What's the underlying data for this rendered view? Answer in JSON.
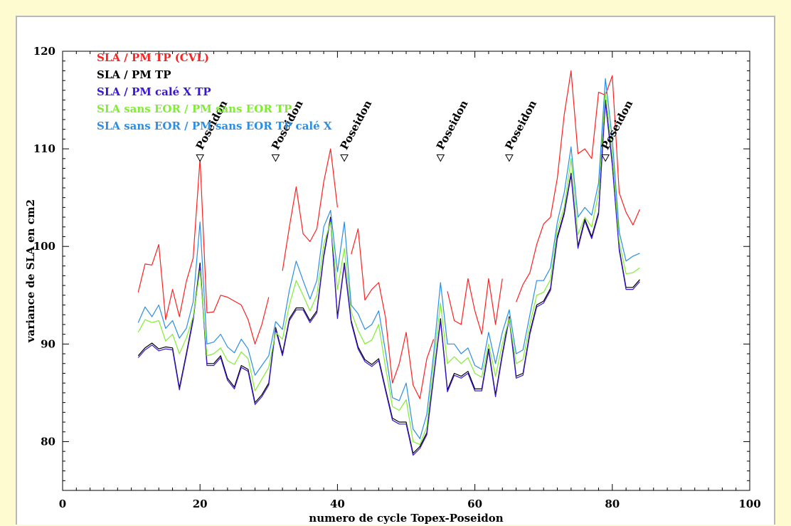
{
  "chart_data": {
    "type": "line",
    "title": "",
    "xlabel": "numero de cycle Topex-Poseidon",
    "ylabel": "variance de SLA en cm2",
    "xlim": [
      0,
      100
    ],
    "ylim": [
      75,
      120
    ],
    "x_ticks": [
      0,
      20,
      40,
      60,
      80,
      100
    ],
    "y_ticks": [
      80,
      90,
      100,
      110,
      120
    ],
    "grid": false,
    "legend_position": "top-left",
    "x": [
      11,
      12,
      13,
      14,
      15,
      16,
      17,
      18,
      19,
      20,
      21,
      22,
      23,
      24,
      25,
      26,
      27,
      28,
      29,
      30,
      31,
      32,
      33,
      34,
      35,
      36,
      37,
      38,
      39,
      40,
      41,
      42,
      43,
      44,
      45,
      46,
      47,
      48,
      49,
      50,
      51,
      52,
      53,
      54,
      55,
      56,
      57,
      58,
      59,
      60,
      61,
      62,
      63,
      64,
      65,
      66,
      67,
      68,
      69,
      70,
      71,
      72,
      73,
      74,
      75,
      76,
      77,
      78,
      79,
      80,
      81,
      82,
      83,
      84
    ],
    "series": [
      {
        "name": "SLA / PM TP (CVL)",
        "color": "#ff2020",
        "values": [
          95.3,
          98.2,
          98.1,
          100.2,
          92.5,
          95.6,
          92.8,
          96.4,
          98.8,
          109.0,
          93.2,
          93.3,
          95.0,
          94.8,
          94.4,
          94.0,
          92.5,
          90.0,
          92.0,
          94.8,
          null,
          97.5,
          102.0,
          106.1,
          101.3,
          100.5,
          101.8,
          106.6,
          110.0,
          104.0,
          null,
          99.2,
          101.8,
          94.5,
          95.6,
          96.3,
          92.7,
          86.0,
          88.0,
          91.2,
          85.8,
          84.4,
          88.5,
          90.5,
          null,
          95.4,
          92.4,
          92.0,
          96.7,
          93.4,
          91.0,
          96.7,
          92.0,
          96.7,
          null,
          94.3,
          96.1,
          97.3,
          100.2,
          102.3,
          103.0,
          107.0,
          113.5,
          118.0,
          109.5,
          110.0,
          109.0,
          115.8,
          115.5,
          117.5,
          105.5,
          103.5,
          102.2,
          103.8
        ]
      },
      {
        "name": "SLA / PM TP",
        "color": "#000000",
        "values": [
          88.8,
          89.6,
          90.1,
          89.5,
          89.7,
          89.6,
          85.5,
          89.0,
          92.6,
          98.3,
          88.0,
          88.0,
          88.8,
          86.5,
          85.6,
          87.8,
          87.4,
          84.0,
          84.8,
          86.0,
          91.7,
          89.0,
          92.6,
          93.7,
          93.7,
          92.4,
          93.4,
          99.1,
          103.0,
          92.8,
          98.3,
          92.4,
          89.7,
          88.4,
          87.9,
          88.5,
          85.4,
          82.4,
          82.0,
          82.0,
          78.8,
          79.5,
          80.9,
          86.7,
          92.6,
          85.3,
          87.0,
          86.7,
          87.2,
          85.4,
          85.4,
          89.5,
          84.8,
          89.0,
          92.8,
          86.7,
          87.0,
          91.2,
          94.0,
          94.4,
          95.7,
          101.0,
          103.5,
          107.5,
          100.0,
          102.8,
          101.0,
          103.5,
          115.0,
          108.5,
          99.8,
          95.8,
          95.8,
          96.6
        ]
      },
      {
        "name": "SLA / PM calé X TP",
        "color": "#3a14d8",
        "values": [
          88.6,
          89.4,
          89.9,
          89.3,
          89.5,
          89.4,
          85.3,
          88.8,
          92.4,
          98.0,
          87.8,
          87.8,
          88.6,
          86.3,
          85.4,
          87.6,
          87.2,
          83.8,
          84.6,
          85.8,
          91.5,
          88.8,
          92.4,
          93.5,
          93.5,
          92.2,
          93.2,
          98.9,
          102.8,
          92.6,
          98.1,
          92.2,
          89.5,
          88.2,
          87.7,
          88.3,
          85.2,
          82.2,
          81.8,
          81.8,
          78.6,
          79.3,
          80.7,
          86.5,
          92.4,
          85.1,
          86.8,
          86.5,
          87.0,
          85.2,
          85.2,
          89.3,
          84.6,
          88.8,
          92.6,
          86.5,
          86.8,
          91.0,
          93.8,
          94.2,
          95.5,
          100.8,
          103.3,
          107.3,
          99.8,
          102.6,
          100.8,
          103.3,
          114.8,
          108.3,
          99.6,
          95.6,
          95.6,
          96.4
        ]
      },
      {
        "name": "SLA sans EOR / PM sans EOR TP",
        "color": "#80ee30",
        "values": [
          91.2,
          92.5,
          92.2,
          92.4,
          90.3,
          91.0,
          89.0,
          90.6,
          92.8,
          97.5,
          88.8,
          89.0,
          89.6,
          88.3,
          87.9,
          89.2,
          88.5,
          85.2,
          86.4,
          87.6,
          91.2,
          90.5,
          94.0,
          96.5,
          95.0,
          93.4,
          95.0,
          100.2,
          102.5,
          95.6,
          99.8,
          93.3,
          91.4,
          90.0,
          90.4,
          92.0,
          87.6,
          83.6,
          83.2,
          84.3,
          80.0,
          79.7,
          81.5,
          88.0,
          94.2,
          88.0,
          88.7,
          88.0,
          88.6,
          87.0,
          86.6,
          90.0,
          86.7,
          90.0,
          92.6,
          88.0,
          88.4,
          92.0,
          95.0,
          95.3,
          96.6,
          101.8,
          104.0,
          109.0,
          101.2,
          103.0,
          102.0,
          105.5,
          115.8,
          109.5,
          100.5,
          97.2,
          97.3,
          97.8
        ]
      },
      {
        "name": "SLA sans EOR / PM sans EOR TP calé X",
        "color": "#2a8ee8",
        "values": [
          92.2,
          93.8,
          92.8,
          94.0,
          91.6,
          92.4,
          90.6,
          91.6,
          94.3,
          102.5,
          90.0,
          90.2,
          91.0,
          89.7,
          89.1,
          90.5,
          89.5,
          86.8,
          87.8,
          88.8,
          92.3,
          91.5,
          95.5,
          98.5,
          96.5,
          94.6,
          96.5,
          102.0,
          103.7,
          97.4,
          102.5,
          94.0,
          93.1,
          91.5,
          92.0,
          93.4,
          89.2,
          84.5,
          84.2,
          86.0,
          81.3,
          80.3,
          82.8,
          89.0,
          96.3,
          90.0,
          90.0,
          89.0,
          89.6,
          87.8,
          87.4,
          91.2,
          88.0,
          91.2,
          93.5,
          89.0,
          89.4,
          93.0,
          96.5,
          96.5,
          97.8,
          102.5,
          105.5,
          110.2,
          103.0,
          104.0,
          103.2,
          106.5,
          117.2,
          111.0,
          101.5,
          98.5,
          99.0,
          99.3
        ]
      }
    ],
    "annotations": [
      {
        "x": 20,
        "label": "Poseidon"
      },
      {
        "x": 31,
        "label": "Poseidon"
      },
      {
        "x": 41,
        "label": "Poseidon"
      },
      {
        "x": 55,
        "label": "Poseidon"
      },
      {
        "x": 65,
        "label": "Poseidon"
      },
      {
        "x": 79,
        "label": "Poseidon"
      }
    ]
  }
}
